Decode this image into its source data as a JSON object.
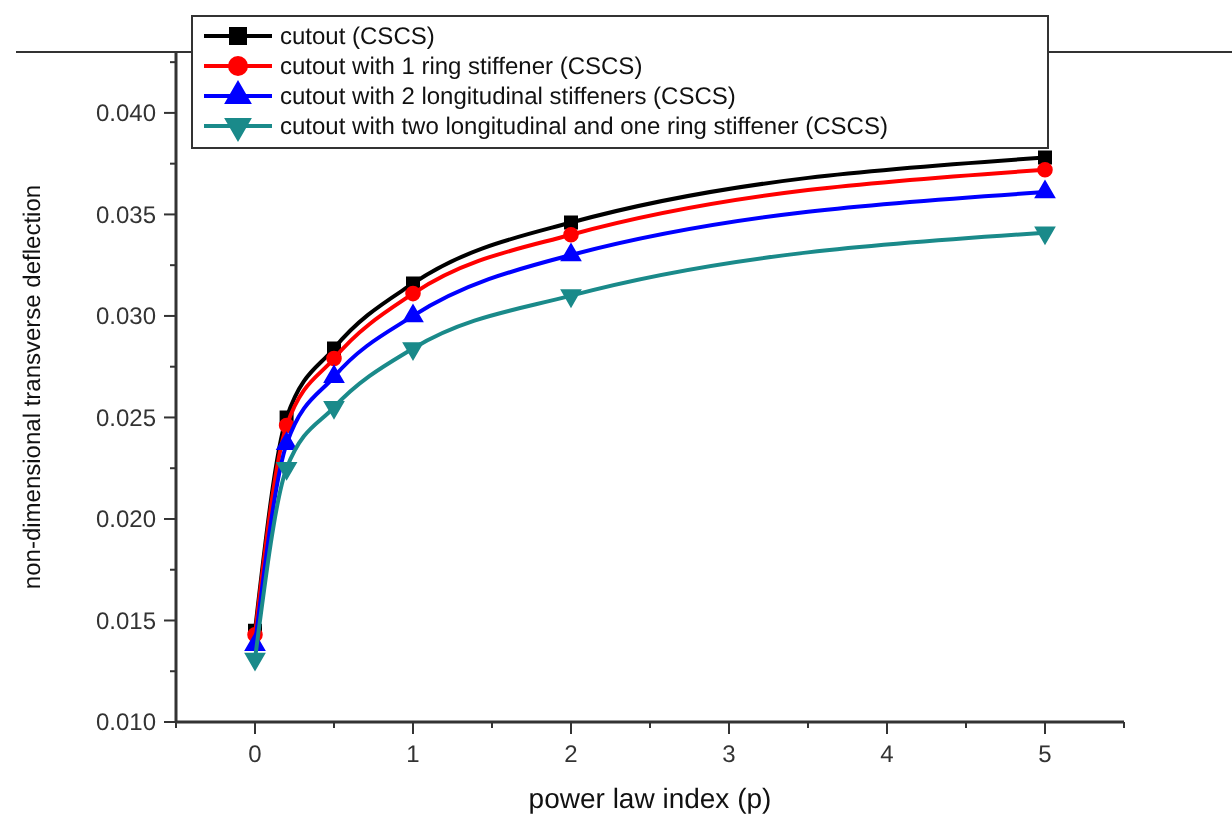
{
  "chart_data": {
    "type": "line",
    "xlabel": "power law index (p)",
    "ylabel": "non-dimensional transverse deflection",
    "x": [
      0,
      0.2,
      0.5,
      1,
      2,
      5
    ],
    "xlim": [
      -0.5,
      5.5
    ],
    "xticks": [
      {
        "value": -0.5,
        "label": null
      },
      0,
      {
        "value": 0.5,
        "label": null
      },
      1,
      {
        "value": 1.5,
        "label": null
      },
      2,
      {
        "value": 2.5,
        "label": null
      },
      3,
      {
        "value": 3.5,
        "label": null
      },
      4,
      {
        "value": 4.5,
        "label": null
      },
      5,
      {
        "value": 5.5,
        "label": null
      }
    ],
    "ylim": [
      0.01,
      0.043
    ],
    "yticks": [
      {
        "value": 0.01,
        "label": "0.010"
      },
      {
        "value": 0.0125,
        "label": null
      },
      {
        "value": 0.015,
        "label": "0.015"
      },
      {
        "value": 0.0175,
        "label": null
      },
      {
        "value": 0.02,
        "label": "0.020"
      },
      {
        "value": 0.0225,
        "label": null
      },
      {
        "value": 0.025,
        "label": "0.025"
      },
      {
        "value": 0.0275,
        "label": null
      },
      {
        "value": 0.03,
        "label": "0.030"
      },
      {
        "value": 0.0325,
        "label": null
      },
      {
        "value": 0.035,
        "label": "0.035"
      },
      {
        "value": 0.0375,
        "label": null
      },
      {
        "value": 0.04,
        "label": "0.040"
      },
      {
        "value": 0.0425,
        "label": null
      }
    ],
    "legend": "top",
    "grid": false,
    "line_style": "solid",
    "series": [
      {
        "name": "cutout (CSCS)",
        "color": "#000000",
        "marker": "square",
        "values": [
          0.0145,
          0.025,
          0.0284,
          0.0316,
          0.0346,
          0.0378
        ]
      },
      {
        "name": "cutout with 1 ring stiffener (CSCS)",
        "color": "#ff0000",
        "marker": "circle",
        "values": [
          0.0143,
          0.0246,
          0.0279,
          0.0311,
          0.034,
          0.0372
        ]
      },
      {
        "name": "cutout with 2 longitudinal stiffeners (CSCS)",
        "color": "#0000ff",
        "marker": "triangle",
        "values": [
          0.0138,
          0.0237,
          0.027,
          0.03,
          0.033,
          0.0361
        ]
      },
      {
        "name": "cutout with two longitudinal and one ring stiffener (CSCS)",
        "color": "#1a8a8a",
        "marker": "triangle-down",
        "values": [
          0.0131,
          0.0225,
          0.0255,
          0.0284,
          0.031,
          0.0341
        ]
      }
    ]
  }
}
